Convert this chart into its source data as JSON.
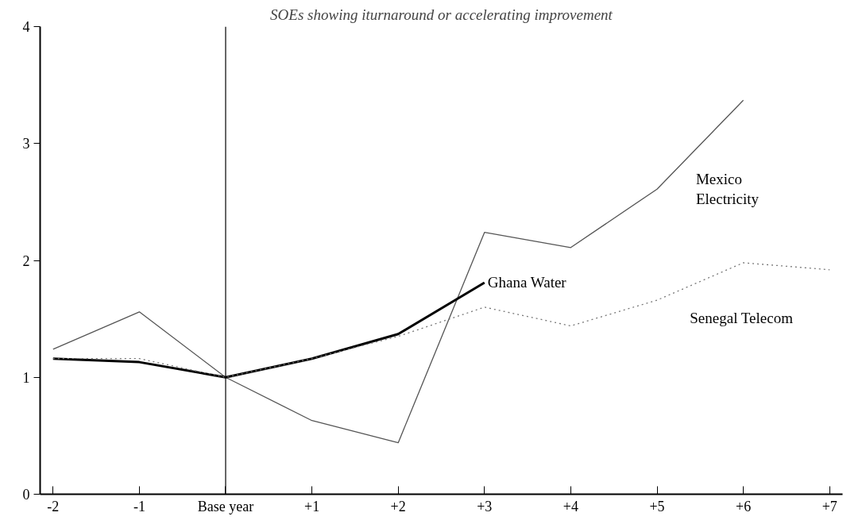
{
  "chart_data": {
    "type": "line",
    "title": "SOEs showing iturnaround or accelerating improvement",
    "categories": [
      "-2",
      "-1",
      "Base year",
      "+1",
      "+2",
      "+3",
      "+4",
      "+5",
      "+6",
      "+7"
    ],
    "series": [
      {
        "name": "Mexico Electricity",
        "color": "#555555",
        "line_style": "solid",
        "values": [
          1.24,
          1.56,
          1.0,
          0.63,
          0.44,
          2.24,
          2.11,
          2.61,
          3.37,
          null
        ]
      },
      {
        "name": "Ghana Water",
        "color": "#000000",
        "line_style": "solid",
        "values": [
          1.16,
          1.13,
          1.0,
          1.16,
          1.37,
          1.81,
          null,
          null,
          null,
          null
        ]
      },
      {
        "name": "Senegal Telecom",
        "color": "#777777",
        "line_style": "dotted",
        "values": [
          1.16,
          1.16,
          1.0,
          1.16,
          1.35,
          1.6,
          1.44,
          1.66,
          1.98,
          1.92
        ]
      }
    ],
    "ylim": [
      0,
      4
    ],
    "yticks": [
      0,
      1,
      2,
      3,
      4
    ],
    "grid": false,
    "marker": "none",
    "ref_lines": [
      {
        "axis": "x",
        "value": "Base year",
        "label": null
      }
    ]
  }
}
